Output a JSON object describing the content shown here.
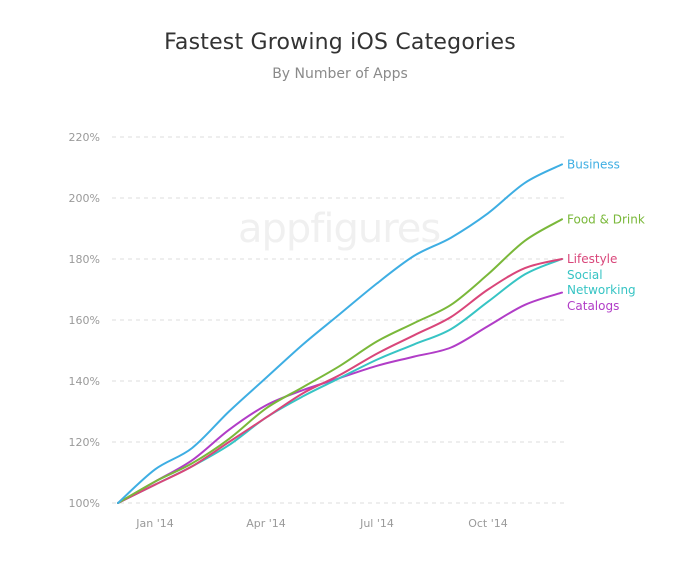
{
  "chart_data": {
    "type": "line",
    "title": "Fastest Growing iOS Categories",
    "subtitle": "By Number of Apps",
    "watermark": "appfigures",
    "x": [
      "2013-12",
      "2014-01",
      "2014-02",
      "2014-03",
      "2014-04",
      "2014-05",
      "2014-06",
      "2014-07",
      "2014-08",
      "2014-09",
      "2014-10",
      "2014-11",
      "2014-12"
    ],
    "x_ticks": [
      {
        "label": "Jan '14",
        "index": 1
      },
      {
        "label": "Apr '14",
        "index": 4
      },
      {
        "label": "Jul '14",
        "index": 7
      },
      {
        "label": "Oct '14",
        "index": 10
      }
    ],
    "y_ticks": [
      "100%",
      "120%",
      "140%",
      "160%",
      "180%",
      "200%",
      "220%"
    ],
    "ylim": [
      100,
      220
    ],
    "grid": "horizontal dashed",
    "legend": "right, labels at line ends",
    "series": [
      {
        "name": "Business",
        "color": "#3eaee3",
        "values": [
          100,
          111,
          118,
          130,
          141,
          152,
          162,
          172,
          181,
          187,
          195,
          205,
          211
        ]
      },
      {
        "name": "Food & Drink",
        "color": "#7ab83a",
        "values": [
          100,
          107,
          113,
          121,
          131,
          138,
          145,
          153,
          159,
          165,
          175,
          186,
          193
        ]
      },
      {
        "name": "Lifestyle",
        "color": "#d9467a",
        "values": [
          100,
          106,
          112,
          120,
          128,
          136,
          142,
          149,
          155,
          161,
          170,
          177,
          180
        ]
      },
      {
        "name": "Social Networking",
        "label_lines": [
          "Social",
          "Networking"
        ],
        "color": "#37c4c4",
        "values": [
          100,
          106,
          112,
          119,
          128,
          135,
          141,
          147,
          152,
          157,
          166,
          175,
          180
        ]
      },
      {
        "name": "Catalogs",
        "color": "#b13dc7",
        "values": [
          100,
          107,
          114,
          124,
          132,
          137,
          141,
          145,
          148,
          151,
          158,
          165,
          169
        ]
      }
    ]
  }
}
